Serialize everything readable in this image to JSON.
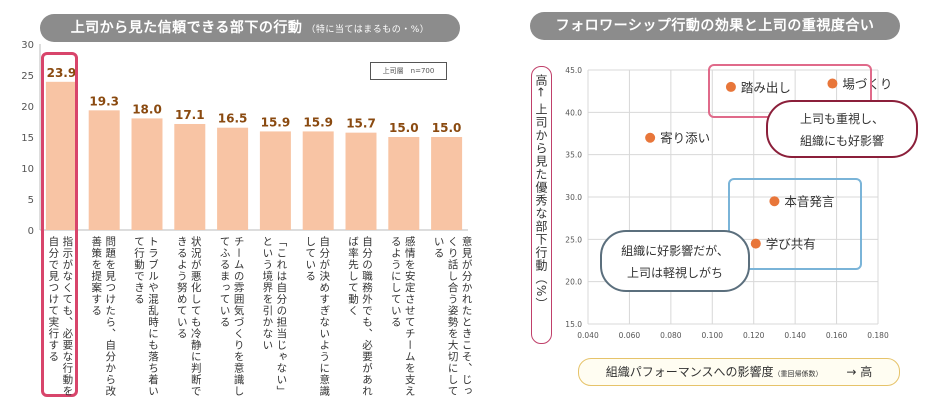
{
  "left_panel": {
    "title": "上司から見た信頼できる部下の行動",
    "title_note": "（特に当てはまるもの・%）",
    "legend": "上司層　n=700"
  },
  "right_panel": {
    "title": "フォロワーシップ行動の効果と上司の重視度合い",
    "y_axis_label": "高← 上司から見た優秀な部下行動（%）",
    "x_axis_label": "組織パフォーマンスへの影響度",
    "x_axis_note": "（重回帰係数）",
    "x_axis_arrow": "→ 高",
    "callout_top_line1": "上司も重視し、",
    "callout_top_line2": "組織にも好影響",
    "callout_bottom_line1": "組織に好影響だが、",
    "callout_bottom_line2": "上司は軽視しがち"
  },
  "chart_data": [
    {
      "type": "bar",
      "title": "上司から見た信頼できる部下の行動（特に当てはまるもの・%）",
      "legend": "上司層　n=700",
      "ylim": [
        0,
        30
      ],
      "yticks": [
        0,
        5,
        10,
        15,
        20,
        25,
        30
      ],
      "grid": false,
      "categories": [
        "指示がなくても、必要な行動を自分で見つけて実行する",
        "問題を見つけたら、自分から改善策を提案する",
        "トラブルや混乱時にも落ち着いて行動できる",
        "状況が悪化しても冷静に判断できるよう努めている",
        "チームの雰囲気づくりを意識してふるまっている",
        "「これは自分の担当じゃない」という境界を引かない",
        "自分が決めすぎないように意識している",
        "自分の職務外でも、必要があれば率先して動く",
        "感情を安定させてチームを支えるようにしている",
        "意見が分かれたときこそ、じっくり話し合う姿勢を大切にしている"
      ],
      "values": [
        23.9,
        19.3,
        18.0,
        17.1,
        16.5,
        15.9,
        15.9,
        15.7,
        15.0,
        15.0
      ],
      "colors": {
        "bar": "#f8c4a4",
        "label": "#8a4a10",
        "highlight": "#d8456b"
      }
    },
    {
      "type": "scatter",
      "title": "フォロワーシップ行動の効果と上司の重視度合い",
      "xlabel": "組織パフォーマンスへの影響度（重回帰係数）",
      "ylabel": "上司から見た優秀な部下行動（%）",
      "xlim": [
        0.04,
        0.18
      ],
      "ylim": [
        15.0,
        45.0
      ],
      "xticks": [
        "0.040",
        "0.060",
        "0.080",
        "0.100",
        "0.120",
        "0.140",
        "0.160",
        "0.180"
      ],
      "yticks": [
        "15.0",
        "20.0",
        "25.0",
        "30.0",
        "35.0",
        "40.0",
        "45.0"
      ],
      "grid": true,
      "points": [
        {
          "label": "踏み出し",
          "x": 0.109,
          "y": 43.0
        },
        {
          "label": "場づくり",
          "x": 0.158,
          "y": 43.4
        },
        {
          "label": "寄り添い",
          "x": 0.07,
          "y": 37.0
        },
        {
          "label": "本音発言",
          "x": 0.13,
          "y": 29.5
        },
        {
          "label": "学び共有",
          "x": 0.121,
          "y": 24.5
        }
      ],
      "colors": {
        "point": "#e8763a",
        "grid": "#d8d8d8"
      }
    }
  ]
}
